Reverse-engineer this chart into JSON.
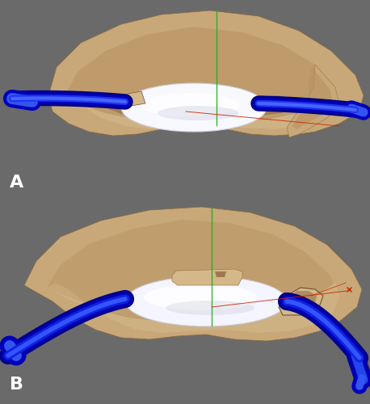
{
  "bg_color": "#6a6a6a",
  "separator_color": "#111111",
  "label_A": "A",
  "label_B": "B",
  "label_color": "#ffffff",
  "label_fontsize": 16,
  "eye_tan": "#c8a878",
  "eye_tan_light": "#d4b88a",
  "eye_tan_mid": "#b89060",
  "eye_tan_dark": "#a07850",
  "eye_inner": "#8a6840",
  "lens_white": "#f0f0f8",
  "haptic_dark": "#0000cc",
  "haptic_light": "#4466ff",
  "green_axis": "#22aa22",
  "red_line": "#cc2200"
}
